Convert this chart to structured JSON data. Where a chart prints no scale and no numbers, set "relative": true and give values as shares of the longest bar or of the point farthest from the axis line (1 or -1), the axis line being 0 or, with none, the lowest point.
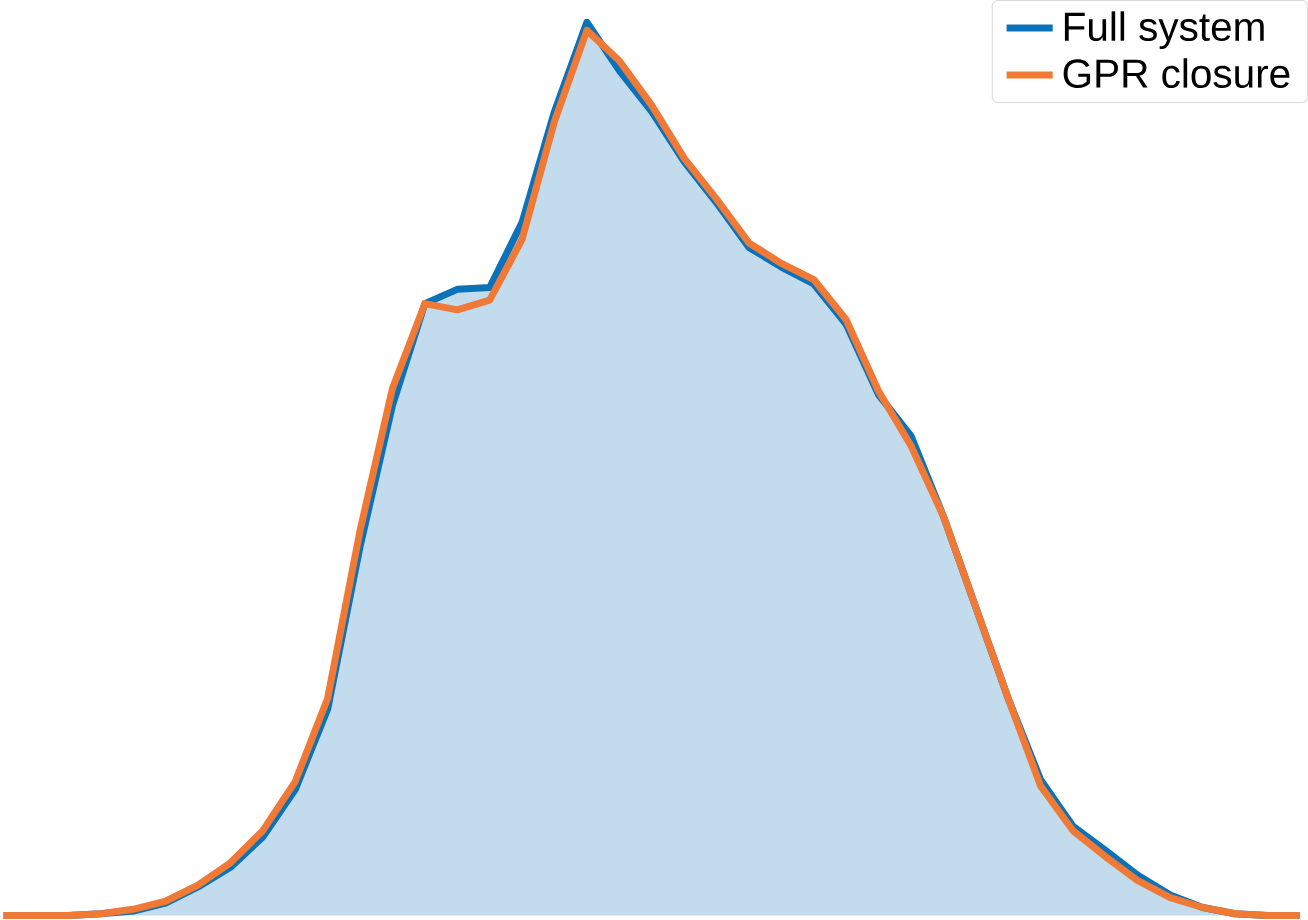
{
  "chart_data": {
    "type": "line",
    "relative": true,
    "legend": "top right",
    "categories": [
      null,
      null,
      null,
      null,
      null,
      null,
      null,
      null,
      null,
      null,
      null,
      null,
      null,
      null,
      null,
      null,
      null,
      null,
      null,
      null,
      null,
      null,
      null,
      null,
      null,
      null,
      null,
      null,
      null,
      null,
      null,
      null,
      null,
      null,
      null,
      null,
      null,
      null,
      null,
      null,
      null
    ],
    "series": [
      {
        "name": "Full system",
        "type": "area",
        "color": "#0a72ba",
        "values": [
          0,
          0,
          0,
          0.002,
          0.005,
          0.014,
          0.032,
          0.054,
          0.088,
          0.141,
          0.231,
          0.413,
          0.571,
          0.685,
          0.701,
          0.703,
          0.776,
          0.9,
          1,
          0.946,
          0.9,
          0.844,
          0.798,
          0.748,
          0.726,
          0.707,
          0.662,
          0.583,
          0.537,
          0.447,
          0.345,
          0.243,
          0.152,
          0.1,
          0.073,
          0.045,
          0.023,
          0.009,
          0.002,
          0,
          0
        ]
      },
      {
        "name": "GPR closure",
        "color": "#f07a35",
        "values": [
          0,
          0,
          0,
          0.002,
          0.007,
          0.016,
          0.034,
          0.059,
          0.095,
          0.15,
          0.243,
          0.431,
          0.59,
          0.685,
          0.678,
          0.689,
          0.757,
          0.889,
          0.991,
          0.957,
          0.907,
          0.848,
          0.802,
          0.753,
          0.73,
          0.712,
          0.667,
          0.587,
          0.526,
          0.447,
          0.345,
          0.243,
          0.145,
          0.095,
          0.066,
          0.039,
          0.02,
          0.009,
          0.002,
          0,
          0
        ]
      }
    ]
  }
}
